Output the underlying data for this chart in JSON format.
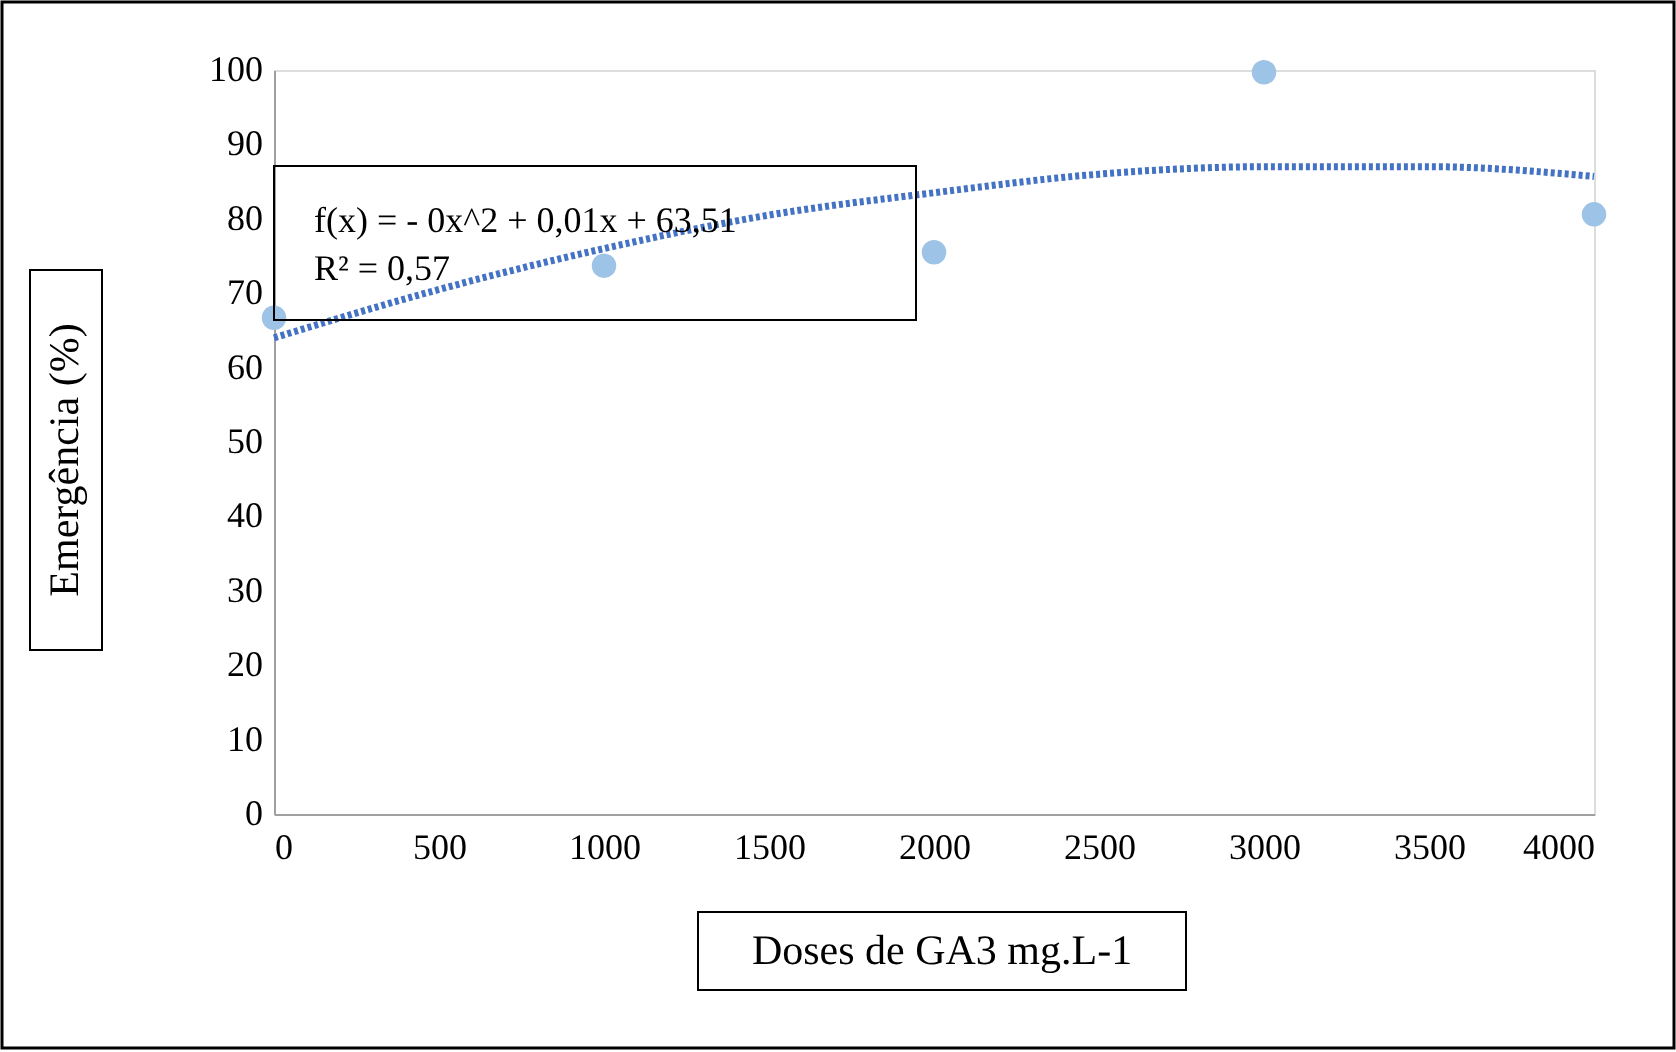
{
  "chart_data": {
    "type": "scatter",
    "xlabel": "Doses de GA3 mg.L-1",
    "ylabel": "Emergência (%)",
    "series": [
      {
        "color": "#9dc3e6",
        "marker": "circle",
        "x": [
          0,
          1000,
          2000,
          3000,
          4000
        ],
        "values": [
          66.7,
          73.7,
          75.5,
          99.7,
          80.6
        ]
      },
      {
        "type": "line",
        "color": "#4472c4",
        "line_style": "dotted",
        "marker": "none",
        "x": [
          0,
          500,
          1000,
          1500,
          2000,
          2500,
          3000,
          3500,
          4000
        ],
        "values": [
          64,
          70.5,
          76,
          80.5,
          83.5,
          86,
          87,
          87,
          85.7
        ]
      }
    ],
    "annotations": [
      "f(x) =  - 0x^2 + 0,01x + 63,51",
      "R² = 0,57"
    ],
    "xlim": [
      0,
      4000
    ],
    "xticks": [
      0,
      500,
      1000,
      1500,
      2000,
      2500,
      3000,
      3500,
      4000
    ],
    "ylim": [
      0,
      100
    ],
    "yticks": [
      0,
      10,
      20,
      30,
      40,
      50,
      60,
      70,
      80,
      90,
      100
    ],
    "grid": false
  }
}
